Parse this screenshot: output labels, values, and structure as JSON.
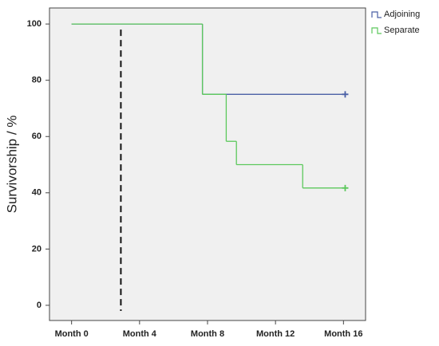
{
  "chart_data": {
    "type": "step",
    "ylabel": "Survivorship / %",
    "xlim": [
      -1.3,
      17.3
    ],
    "ylim": [
      -5.4,
      105.7
    ],
    "xticks": [
      {
        "value": 0,
        "label": "Month 0"
      },
      {
        "value": 4,
        "label": "Month 4"
      },
      {
        "value": 8,
        "label": "Month 8"
      },
      {
        "value": 12,
        "label": "Month 12"
      },
      {
        "value": 16,
        "label": "Month 16"
      }
    ],
    "yticks": [
      0,
      20,
      40,
      60,
      80,
      100
    ],
    "reference_x": 2.9,
    "legend": "top-right-outside",
    "series": [
      {
        "name": "Adjoining",
        "color": "#4a5fa5",
        "x": [
          0,
          7.7,
          16.1
        ],
        "values": [
          100,
          75,
          75
        ]
      },
      {
        "name": "Separate",
        "color": "#5cc85c",
        "x": [
          0,
          7.7,
          9.1,
          9.7,
          13.6,
          16.1
        ],
        "values": [
          100,
          75,
          58.3,
          50,
          41.7,
          41.7
        ]
      }
    ]
  }
}
